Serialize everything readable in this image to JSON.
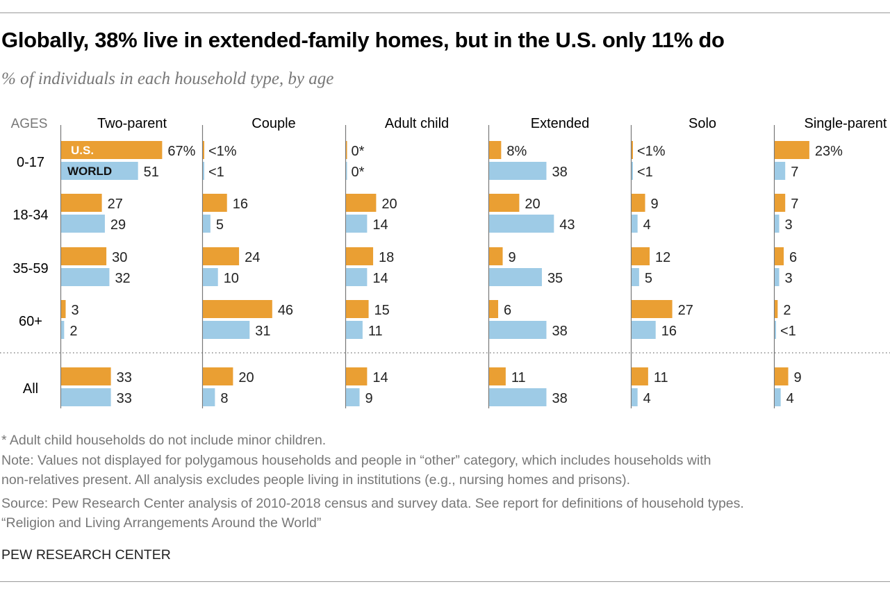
{
  "title": "Globally, 38% live in extended-family homes, but in the U.S. only 11% do",
  "subtitle": "% of individuals in each household type, by age",
  "colors": {
    "us": "#EA9F33",
    "world": "#9ECBE6",
    "axis": "#777777"
  },
  "chart_data": {
    "type": "bar",
    "orientation": "horizontal",
    "row_header": "AGES",
    "rows": [
      "0-17",
      "18-34",
      "35-59",
      "60+",
      "All"
    ],
    "series_labels": {
      "us": "U.S.",
      "world": "WORLD"
    },
    "panels": [
      {
        "name": "Two-parent",
        "us": [
          67,
          27,
          30,
          3,
          33
        ],
        "world": [
          51,
          29,
          32,
          2,
          33
        ],
        "us_labels": [
          "67%",
          "27",
          "30",
          "3",
          "33"
        ],
        "world_labels": [
          "51",
          "29",
          "32",
          "2",
          "33"
        ]
      },
      {
        "name": "Couple",
        "us": [
          0.5,
          16,
          24,
          46,
          20
        ],
        "world": [
          0.5,
          5,
          10,
          31,
          8
        ],
        "us_labels": [
          "<1%",
          "16",
          "24",
          "46",
          "20"
        ],
        "world_labels": [
          "<1",
          "5",
          "10",
          "31",
          "8"
        ]
      },
      {
        "name": "Adult child",
        "us": [
          0,
          20,
          18,
          15,
          14
        ],
        "world": [
          0,
          14,
          14,
          11,
          9
        ],
        "us_labels": [
          "0*",
          "20",
          "18",
          "15",
          "14"
        ],
        "world_labels": [
          "0*",
          "14",
          "14",
          "11",
          "9"
        ]
      },
      {
        "name": "Extended",
        "us": [
          8,
          20,
          9,
          6,
          11
        ],
        "world": [
          38,
          43,
          35,
          38,
          38
        ],
        "us_labels": [
          "8%",
          "20",
          "9",
          "6",
          "11"
        ],
        "world_labels": [
          "38",
          "43",
          "35",
          "38",
          "38"
        ]
      },
      {
        "name": "Solo",
        "us": [
          0.5,
          9,
          12,
          27,
          11
        ],
        "world": [
          0.5,
          4,
          5,
          16,
          4
        ],
        "us_labels": [
          "<1%",
          "9",
          "12",
          "27",
          "11"
        ],
        "world_labels": [
          "<1",
          "4",
          "5",
          "16",
          "4"
        ]
      },
      {
        "name": "Single-parent",
        "us": [
          23,
          7,
          6,
          2,
          9
        ],
        "world": [
          7,
          3,
          3,
          0.5,
          4
        ],
        "us_labels": [
          "23%",
          "7",
          "6",
          "2",
          "9"
        ],
        "world_labels": [
          "7",
          "3",
          "3",
          "<1",
          "4"
        ]
      }
    ]
  },
  "footnotes": [
    "* Adult child households do not include minor children.",
    "Note: Values not displayed for polygamous households and people in “other” category, which includes households with",
    "non-relatives present. All analysis excludes people living in institutions (e.g., nursing homes and prisons).",
    "Source: Pew Research Center analysis of 2010-2018 census and survey data. See report for definitions of household types.",
    "“Religion and Living Arrangements Around the World”"
  ],
  "brand": "PEW RESEARCH CENTER"
}
